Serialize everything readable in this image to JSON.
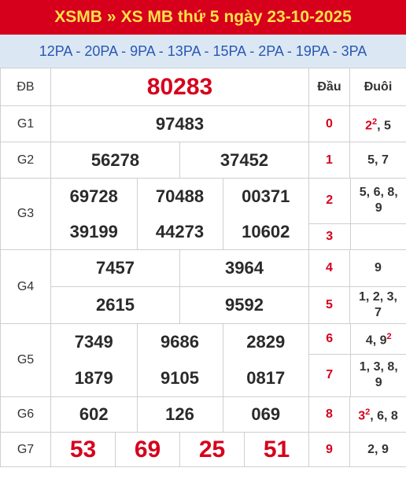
{
  "title": {
    "part1": "XSMB",
    "sep": "»",
    "part2": "XS MB thứ 5",
    "part3": "ngày 23-10-2025"
  },
  "codes": "12PA - 20PA - 9PA - 13PA - 15PA - 2PA - 19PA - 3PA",
  "headers": {
    "dau": "Đầu",
    "duoi": "Đuôi"
  },
  "prizes": {
    "db": {
      "label": "ĐB",
      "nums": [
        "80283"
      ]
    },
    "g1": {
      "label": "G1",
      "nums": [
        "97483"
      ]
    },
    "g2": {
      "label": "G2",
      "nums": [
        "56278",
        "37452"
      ]
    },
    "g3": {
      "label": "G3",
      "nums": [
        "69728",
        "70488",
        "00371",
        "39199",
        "44273",
        "10602"
      ]
    },
    "g4": {
      "label": "G4",
      "nums": [
        "7457",
        "3964",
        "2615",
        "9592"
      ]
    },
    "g5": {
      "label": "G5",
      "nums": [
        "7349",
        "9686",
        "2829",
        "1879",
        "9105",
        "0817"
      ]
    },
    "g6": {
      "label": "G6",
      "nums": [
        "602",
        "126",
        "069"
      ]
    },
    "g7": {
      "label": "G7",
      "nums": [
        "53",
        "69",
        "25",
        "51"
      ]
    }
  },
  "loto": {
    "0": {
      "dau": "0",
      "duoi": "5"
    },
    "1": {
      "dau": "1",
      "duoi": "5, 7"
    },
    "2": {
      "dau": "2",
      "duoi_l1": "5, 6, 8,",
      "duoi_l2": "9"
    },
    "3": {
      "dau": "3",
      "duoi": ""
    },
    "4": {
      "dau": "4",
      "duoi": "9"
    },
    "5": {
      "dau": "5",
      "duoi_l1": "1, 2, 3,",
      "duoi_l2": "7"
    },
    "6": {
      "dau": "6",
      "duoi": "4, 9"
    },
    "7": {
      "dau": "7",
      "duoi_l1": "1, 3, 8,",
      "duoi_l2": "9"
    },
    "8": {
      "dau": "8",
      "duoi": ", 6, 8"
    },
    "9": {
      "dau": "9",
      "duoi": "2, 9"
    }
  },
  "loto_special": {
    "d0_red": "2",
    "d0_sup": "2",
    "d6_sup": "2",
    "d8_red": "3",
    "d8_sup": "2"
  },
  "colors": {
    "red": "#d6001c",
    "yellow": "#ffe04a",
    "blue": "#2a57b5",
    "codes_bg": "#dbe8f4"
  }
}
